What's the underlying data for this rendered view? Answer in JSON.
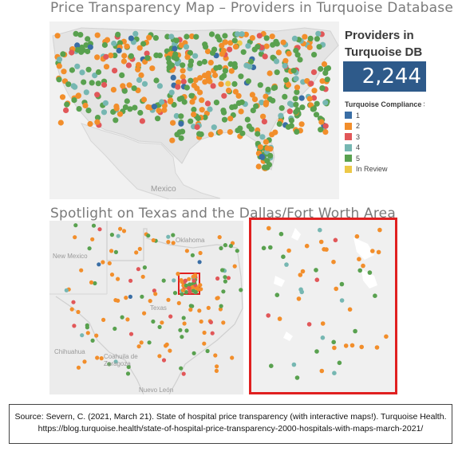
{
  "titles": {
    "main": "Price Transparency Map – Providers in Turquoise Database",
    "spotlight": "Spotlight on Texas and the Dallas/Fort Worth Area"
  },
  "kpi": {
    "label": "Providers in\nTurquoise DB",
    "value": "2,244"
  },
  "legend": {
    "title": "Turquoise Compliance Score",
    "items": [
      {
        "label": "1",
        "color": "#3a6ea5"
      },
      {
        "label": "2",
        "color": "#f28e2b"
      },
      {
        "label": "3",
        "color": "#e15759"
      },
      {
        "label": "4",
        "color": "#76b7b2"
      },
      {
        "label": "5",
        "color": "#59a14f"
      },
      {
        "label": "In Review",
        "color": "#edc948"
      }
    ]
  },
  "map_labels": {
    "mexico": "Mexico",
    "new_mexico": "New Mexico",
    "oklahoma": "Oklahoma",
    "texas": "Texas",
    "chihuahua": "Chihuahua",
    "coahuila": "Coahuila de\nZaragoza",
    "nuevo_leon": "Nuevo León"
  },
  "source": {
    "line1": "Source: Severn, C. (2021, March 21). State of hospital price transparency (with interactive maps!). Turquoise Health.",
    "line2": "https://blog.turquoise.health/state-of-hospital-price-transparency-2000-hospitals-with-maps-march-2021/"
  }
}
